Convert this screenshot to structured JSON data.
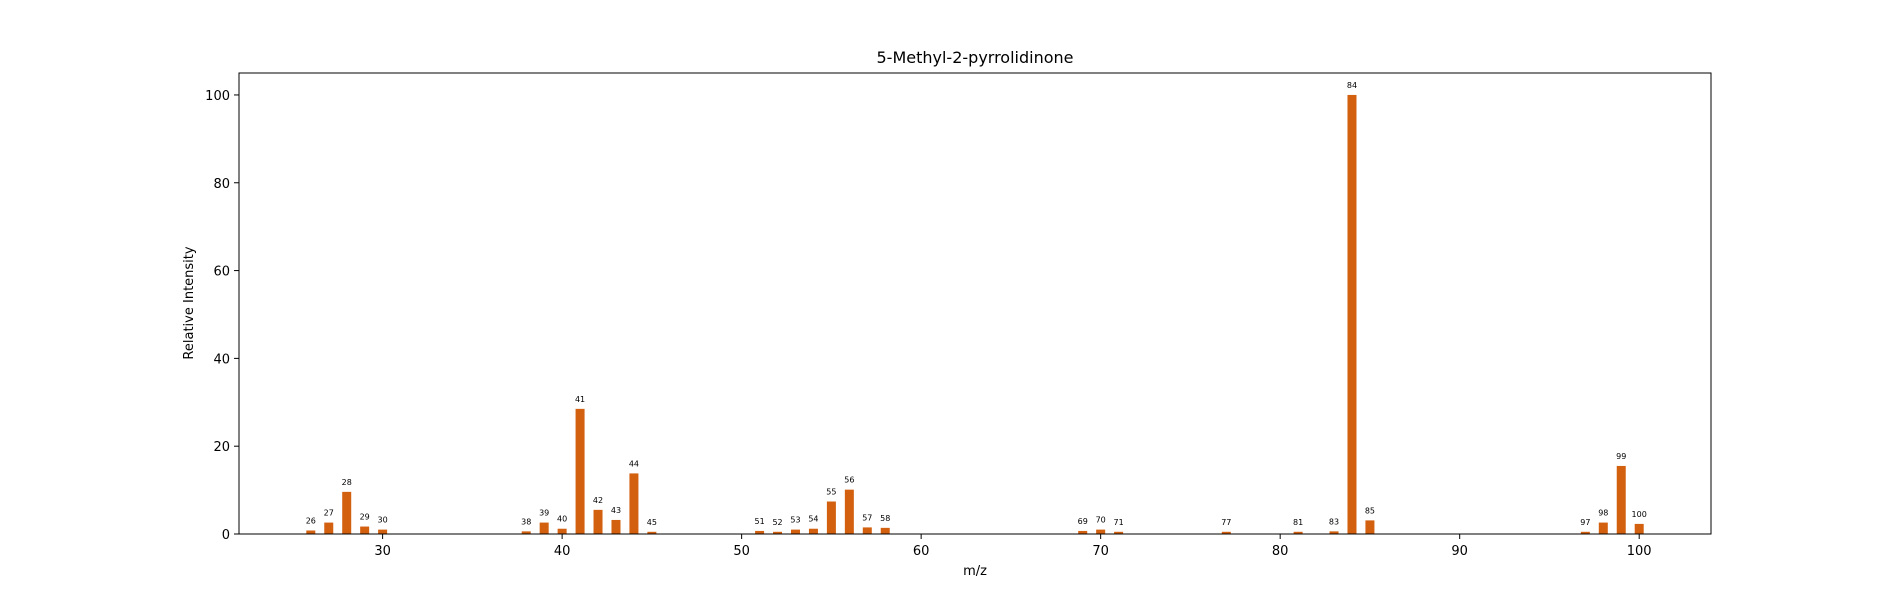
{
  "chart_data": {
    "type": "bar",
    "title": "5-Methyl-2-pyrrolidinone",
    "xlabel": "m/z",
    "ylabel": "Relative Intensity",
    "xlim": [
      22,
      104
    ],
    "ylim": [
      0,
      105
    ],
    "xticks": [
      30,
      40,
      50,
      60,
      70,
      80,
      90,
      100
    ],
    "yticks": [
      0,
      20,
      40,
      60,
      80,
      100
    ],
    "grid": false,
    "bar_color": "#d2600f",
    "x": [
      26,
      27,
      28,
      29,
      30,
      38,
      39,
      40,
      41,
      42,
      43,
      44,
      45,
      51,
      52,
      53,
      54,
      55,
      56,
      57,
      58,
      69,
      70,
      71,
      77,
      81,
      83,
      84,
      85,
      97,
      98,
      99,
      100
    ],
    "values": [
      0.8,
      2.6,
      9.6,
      1.7,
      1.0,
      0.6,
      2.6,
      1.2,
      28.5,
      5.5,
      3.2,
      13.8,
      0.5,
      0.7,
      0.5,
      1.0,
      1.2,
      7.4,
      10.1,
      1.5,
      1.4,
      0.7,
      1.0,
      0.5,
      0.5,
      0.5,
      0.6,
      100.0,
      3.1,
      0.5,
      2.6,
      15.5,
      2.3
    ]
  }
}
